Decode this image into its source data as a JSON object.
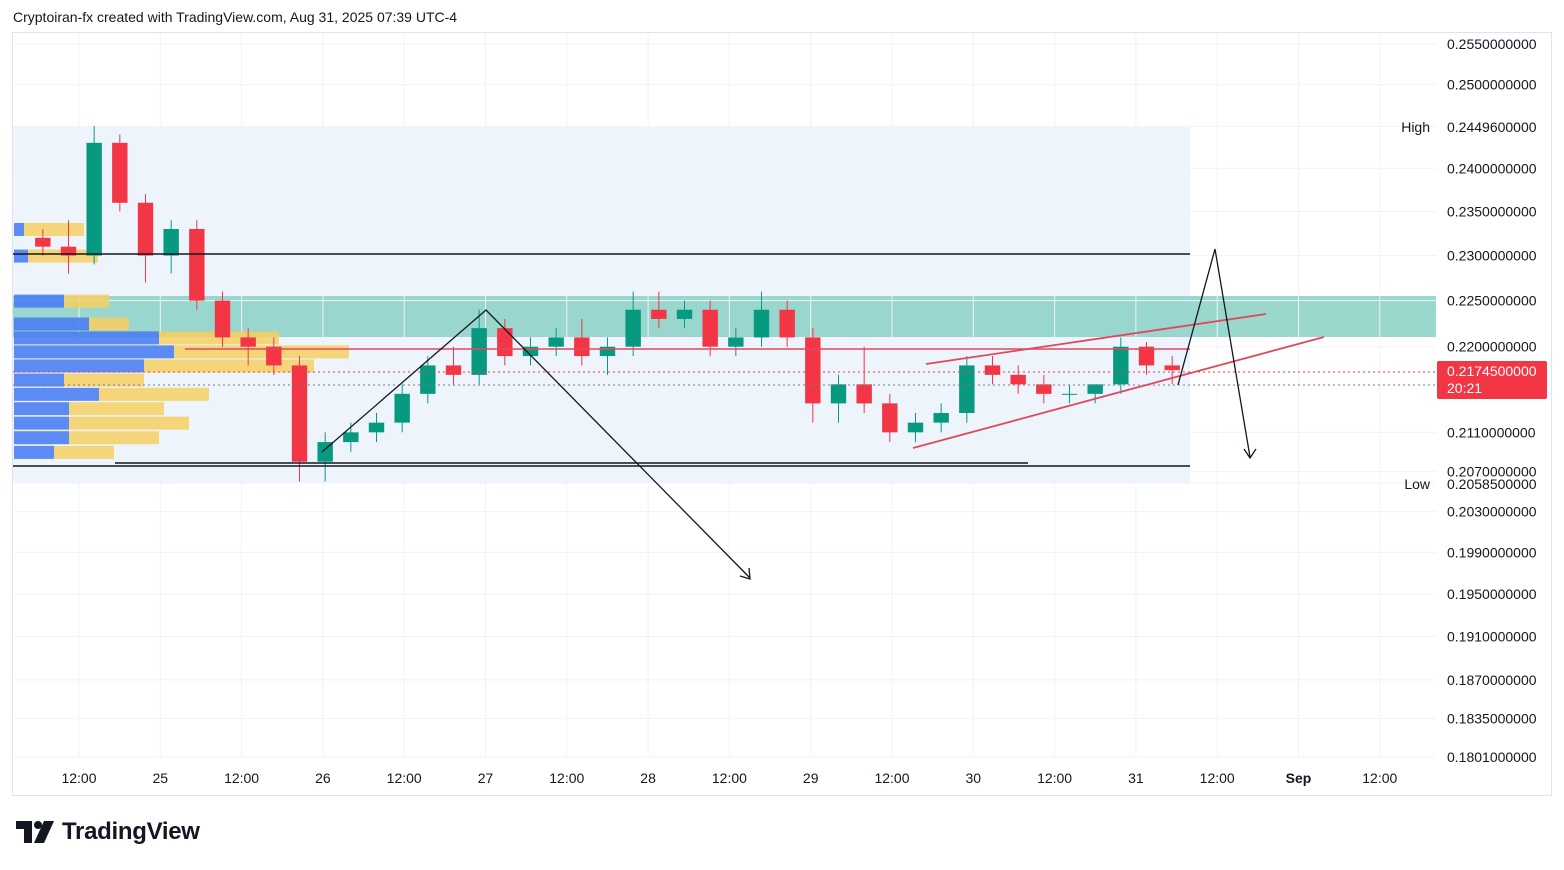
{
  "header": {
    "caption": "Cryptoiran-fx created with TradingView.com, Aug 31, 2025 07:39 UTC-4"
  },
  "brand": {
    "name": "TradingView"
  },
  "chart_data": {
    "type": "candlestick",
    "price_axis": {
      "labels": [
        "0.2550000000",
        "0.2500000000",
        "0.2449600000",
        "0.2400000000",
        "0.2350000000",
        "0.2300000000",
        "0.2250000000",
        "0.2200000000",
        "0.2110000000",
        "0.2070000000",
        "0.2058500000",
        "0.2030000000",
        "0.1990000000",
        "0.1950000000",
        "0.1910000000",
        "0.1870000000",
        "0.1835000000",
        "0.1801000000"
      ],
      "scale": "log"
    },
    "time_axis": {
      "labels": [
        "12:00",
        "25",
        "12:00",
        "26",
        "12:00",
        "27",
        "12:00",
        "28",
        "12:00",
        "29",
        "12:00",
        "30",
        "12:00",
        "31",
        "12:00",
        "Sep",
        "12:00"
      ]
    },
    "current_price": {
      "value": "0.2174500000",
      "countdown": "20:21",
      "color": "#f23645"
    },
    "high": {
      "label": "High",
      "value": "0.2449600000"
    },
    "low": {
      "label": "Low",
      "value": "0.2058500000"
    },
    "colors": {
      "up": "#089981",
      "down": "#f23645",
      "zone": "#8fd3c8",
      "range_bg": "#eaf2fb",
      "volume_up": "#4a7ff2",
      "volume_down": "#f6cf62",
      "trendline": "#e0495b"
    },
    "candles_approx": [
      [
        0,
        0.232,
        0.233,
        0.23,
        0.231
      ],
      [
        1,
        0.231,
        0.234,
        0.228,
        0.23
      ],
      [
        2,
        0.23,
        0.245,
        0.229,
        0.243
      ],
      [
        3,
        0.243,
        0.244,
        0.235,
        0.236
      ],
      [
        4,
        0.236,
        0.237,
        0.227,
        0.23
      ],
      [
        5,
        0.23,
        0.234,
        0.228,
        0.233
      ],
      [
        6,
        0.233,
        0.234,
        0.224,
        0.225
      ],
      [
        7,
        0.225,
        0.226,
        0.22,
        0.221
      ],
      [
        8,
        0.221,
        0.222,
        0.218,
        0.22
      ],
      [
        9,
        0.22,
        0.221,
        0.217,
        0.218
      ],
      [
        10,
        0.218,
        0.219,
        0.206,
        0.208
      ],
      [
        11,
        0.208,
        0.211,
        0.206,
        0.21
      ],
      [
        12,
        0.21,
        0.212,
        0.209,
        0.211
      ],
      [
        13,
        0.211,
        0.213,
        0.21,
        0.212
      ],
      [
        14,
        0.212,
        0.216,
        0.211,
        0.215
      ],
      [
        15,
        0.215,
        0.219,
        0.214,
        0.218
      ],
      [
        16,
        0.218,
        0.22,
        0.216,
        0.217
      ],
      [
        17,
        0.217,
        0.224,
        0.216,
        0.222
      ],
      [
        18,
        0.222,
        0.223,
        0.218,
        0.219
      ],
      [
        19,
        0.219,
        0.221,
        0.218,
        0.22
      ],
      [
        20,
        0.22,
        0.222,
        0.219,
        0.221
      ],
      [
        21,
        0.221,
        0.223,
        0.218,
        0.219
      ],
      [
        22,
        0.219,
        0.221,
        0.217,
        0.22
      ],
      [
        23,
        0.22,
        0.226,
        0.219,
        0.224
      ],
      [
        24,
        0.224,
        0.226,
        0.222,
        0.223
      ],
      [
        25,
        0.223,
        0.225,
        0.222,
        0.224
      ],
      [
        26,
        0.224,
        0.225,
        0.219,
        0.22
      ],
      [
        27,
        0.22,
        0.222,
        0.219,
        0.221
      ],
      [
        28,
        0.221,
        0.226,
        0.22,
        0.224
      ],
      [
        29,
        0.224,
        0.225,
        0.22,
        0.221
      ],
      [
        30,
        0.221,
        0.222,
        0.212,
        0.214
      ],
      [
        31,
        0.214,
        0.217,
        0.212,
        0.216
      ],
      [
        32,
        0.216,
        0.22,
        0.213,
        0.214
      ],
      [
        33,
        0.214,
        0.215,
        0.21,
        0.211
      ],
      [
        34,
        0.211,
        0.213,
        0.21,
        0.212
      ],
      [
        35,
        0.212,
        0.214,
        0.211,
        0.213
      ],
      [
        36,
        0.213,
        0.219,
        0.212,
        0.218
      ],
      [
        37,
        0.218,
        0.219,
        0.216,
        0.217
      ],
      [
        38,
        0.217,
        0.218,
        0.215,
        0.216
      ],
      [
        39,
        0.216,
        0.217,
        0.214,
        0.215
      ],
      [
        40,
        0.215,
        0.216,
        0.214,
        0.215
      ],
      [
        41,
        0.215,
        0.216,
        0.214,
        0.216
      ],
      [
        42,
        0.216,
        0.221,
        0.215,
        0.22
      ],
      [
        43,
        0.22,
        0.2205,
        0.217,
        0.218
      ],
      [
        44,
        0.218,
        0.219,
        0.216,
        0.2175
      ]
    ]
  }
}
